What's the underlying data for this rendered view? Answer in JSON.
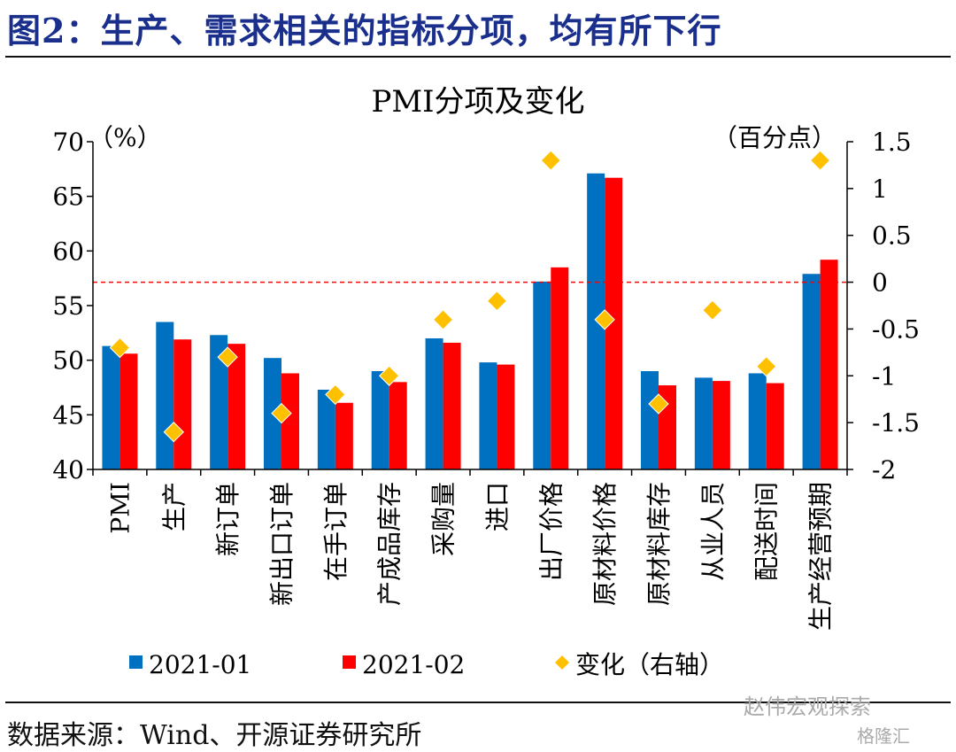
{
  "figure_title": "图2：生产、需求相关的指标分项，均有所下行",
  "source_note": "数据来源：Wind、开源证券研究所",
  "watermark": "赵伟宏观探索",
  "watermark_sub": "格隆汇",
  "colors": {
    "series1": "#0070c0",
    "series2": "#ff0000",
    "change": "#ffc000",
    "title": "#1a2f8c",
    "reference_line": "#ff0000"
  },
  "chart_data": {
    "type": "bar",
    "title": "PMI分项及变化",
    "ylabel_left": "（%）",
    "ylabel_right": "（百分点）",
    "ylim_left": [
      40,
      70
    ],
    "yticks_left": [
      40,
      45,
      50,
      55,
      60,
      65,
      70
    ],
    "ylim_right": [
      -2,
      1.5
    ],
    "yticks_right": [
      -2,
      -1.5,
      -1,
      -0.5,
      0,
      0.5,
      1,
      1.5
    ],
    "ytick_labels_right": [
      "-2",
      "-1.5",
      "-1",
      "-0.5",
      "0",
      "0.5",
      "1",
      "1.5"
    ],
    "reference_line_right": 0,
    "categories": [
      "PMI",
      "生产",
      "新订单",
      "新出口订单",
      "在手订单",
      "产成品库存",
      "采购量",
      "进口",
      "出厂价格",
      "原材料价格",
      "原材料库存",
      "从业人员",
      "配送时间",
      "生产经营预期"
    ],
    "series": [
      {
        "name": "2021-01",
        "values": [
          51.3,
          53.5,
          52.3,
          50.2,
          47.3,
          49.0,
          52.0,
          49.8,
          57.2,
          67.1,
          49.0,
          48.4,
          48.8,
          57.9
        ]
      },
      {
        "name": "2021-02",
        "values": [
          50.6,
          51.9,
          51.5,
          48.8,
          46.1,
          48.0,
          51.6,
          49.6,
          58.5,
          66.7,
          47.7,
          48.1,
          47.9,
          59.2
        ]
      }
    ],
    "change": {
      "name": "变化（右轴）",
      "axis": "right",
      "values": [
        -0.7,
        -1.6,
        -0.8,
        -1.4,
        -1.2,
        -1.0,
        -0.4,
        -0.2,
        1.3,
        -0.4,
        -1.3,
        -0.3,
        -0.9,
        1.3
      ]
    },
    "legend": [
      "2021-01",
      "2021-02",
      "变化（右轴）"
    ],
    "legend_position": "bottom",
    "grid": false
  }
}
